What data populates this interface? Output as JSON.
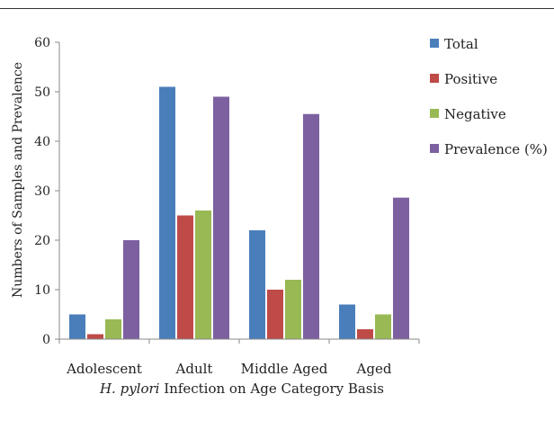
{
  "chart_data": {
    "type": "bar",
    "categories": [
      "Adolescent",
      "Adult",
      "Middle Aged",
      "Aged"
    ],
    "series": [
      {
        "name": "Total",
        "color": "#4a7ebb",
        "values": [
          5,
          51,
          22,
          7
        ]
      },
      {
        "name": "Positive",
        "color": "#be4b48",
        "values": [
          1,
          25,
          10,
          2
        ]
      },
      {
        "name": "Negative",
        "color": "#98b954",
        "values": [
          4,
          26,
          12,
          5
        ]
      },
      {
        "name": "Prevalence (%)",
        "color": "#7d60a0",
        "values": [
          20,
          49,
          45.5,
          28.6
        ]
      }
    ],
    "ylabel": "Numbers of Samples and Prevalence",
    "ylim": [
      0,
      60
    ],
    "yticks": [
      0,
      10,
      20,
      30,
      40,
      50,
      60
    ],
    "grid": false,
    "legend_position": "right"
  },
  "caption": {
    "italic_part": "H. pylori",
    "rest": " Infection on Age Category Basis"
  }
}
